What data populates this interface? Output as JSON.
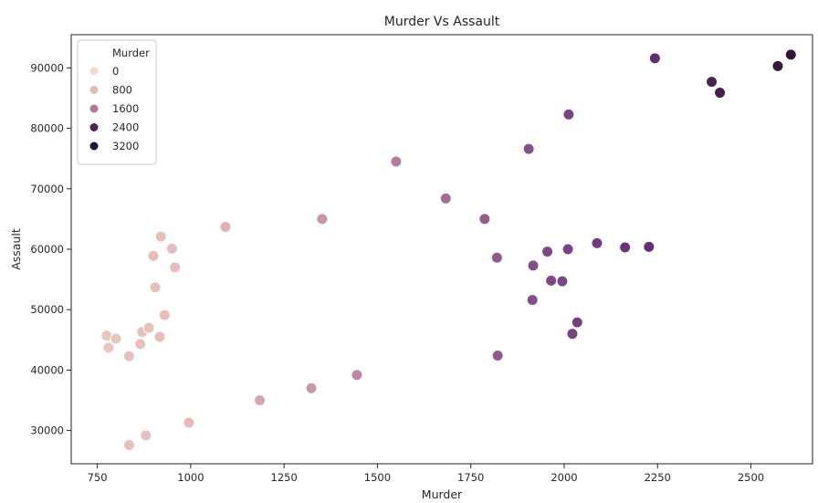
{
  "chart_data": {
    "type": "scatter",
    "title": "Murder Vs Assault",
    "xlabel": "Murder",
    "ylabel": "Assault",
    "xlim": [
      680,
      2665
    ],
    "ylim": [
      24500,
      95500
    ],
    "x_ticks": [
      750,
      1000,
      1250,
      1500,
      1750,
      2000,
      2250,
      2500
    ],
    "y_ticks": [
      30000,
      40000,
      50000,
      60000,
      70000,
      80000,
      90000
    ],
    "grid": false,
    "hue": "Murder",
    "legend": {
      "title": "Murder",
      "placement": "top-left",
      "entries": [
        {
          "label": "0",
          "color": "#f3d9cf"
        },
        {
          "label": "800",
          "color": "#e3bcb9"
        },
        {
          "label": "1600",
          "color": "#ad7a9d"
        },
        {
          "label": "2400",
          "color": "#4d2452"
        },
        {
          "label": "3200",
          "color": "#22122d"
        }
      ]
    },
    "points": [
      {
        "x": 775,
        "y": 45700,
        "color": "#e8c6be"
      },
      {
        "x": 780,
        "y": 43700,
        "color": "#e8c6be"
      },
      {
        "x": 800,
        "y": 45200,
        "color": "#e8c6be"
      },
      {
        "x": 835,
        "y": 42300,
        "color": "#e6c2bc"
      },
      {
        "x": 835,
        "y": 27600,
        "color": "#e6c2bc"
      },
      {
        "x": 865,
        "y": 44300,
        "color": "#e6c2bc"
      },
      {
        "x": 870,
        "y": 46300,
        "color": "#e6c2bc"
      },
      {
        "x": 880,
        "y": 29200,
        "color": "#e6c2bc"
      },
      {
        "x": 888,
        "y": 47000,
        "color": "#e6c2bc"
      },
      {
        "x": 900,
        "y": 58900,
        "color": "#e5c0bb"
      },
      {
        "x": 905,
        "y": 53700,
        "color": "#e5c0bb"
      },
      {
        "x": 917,
        "y": 45500,
        "color": "#e5c0bb"
      },
      {
        "x": 920,
        "y": 62100,
        "color": "#e5c0bb"
      },
      {
        "x": 930,
        "y": 49100,
        "color": "#e5c0bb"
      },
      {
        "x": 950,
        "y": 60100,
        "color": "#e4bebb"
      },
      {
        "x": 958,
        "y": 57000,
        "color": "#e4bebb"
      },
      {
        "x": 995,
        "y": 31300,
        "color": "#e3bcba"
      },
      {
        "x": 1093,
        "y": 63700,
        "color": "#ddb2b4"
      },
      {
        "x": 1185,
        "y": 35000,
        "color": "#d5a8ae"
      },
      {
        "x": 1323,
        "y": 37000,
        "color": "#c897a8"
      },
      {
        "x": 1352,
        "y": 65000,
        "color": "#c594a6"
      },
      {
        "x": 1445,
        "y": 39200,
        "color": "#bb89a3"
      },
      {
        "x": 1550,
        "y": 74500,
        "color": "#b07e9f"
      },
      {
        "x": 1683,
        "y": 68400,
        "color": "#a06f97"
      },
      {
        "x": 1787,
        "y": 65000,
        "color": "#935f8f"
      },
      {
        "x": 1820,
        "y": 58600,
        "color": "#8f5b8c"
      },
      {
        "x": 1822,
        "y": 42400,
        "color": "#8f5b8c"
      },
      {
        "x": 1905,
        "y": 76600,
        "color": "#84508a"
      },
      {
        "x": 1915,
        "y": 51600,
        "color": "#834f89"
      },
      {
        "x": 1917,
        "y": 57300,
        "color": "#834f89"
      },
      {
        "x": 1955,
        "y": 59600,
        "color": "#7e4a86"
      },
      {
        "x": 1965,
        "y": 54800,
        "color": "#7d4985"
      },
      {
        "x": 1995,
        "y": 54700,
        "color": "#7a4684"
      },
      {
        "x": 2010,
        "y": 60000,
        "color": "#784483"
      },
      {
        "x": 2012,
        "y": 82300,
        "color": "#784483"
      },
      {
        "x": 2022,
        "y": 46000,
        "color": "#774382"
      },
      {
        "x": 2035,
        "y": 47900,
        "color": "#764181"
      },
      {
        "x": 2088,
        "y": 61000,
        "color": "#6f3c7d"
      },
      {
        "x": 2163,
        "y": 60300,
        "color": "#67357a"
      },
      {
        "x": 2227,
        "y": 60400,
        "color": "#613076"
      },
      {
        "x": 2243,
        "y": 91600,
        "color": "#5f2e75"
      },
      {
        "x": 2395,
        "y": 87700,
        "color": "#4a2150"
      },
      {
        "x": 2417,
        "y": 85900,
        "color": "#48204e"
      },
      {
        "x": 2572,
        "y": 90300,
        "color": "#35183b"
      },
      {
        "x": 2607,
        "y": 92200,
        "color": "#311636"
      }
    ]
  }
}
